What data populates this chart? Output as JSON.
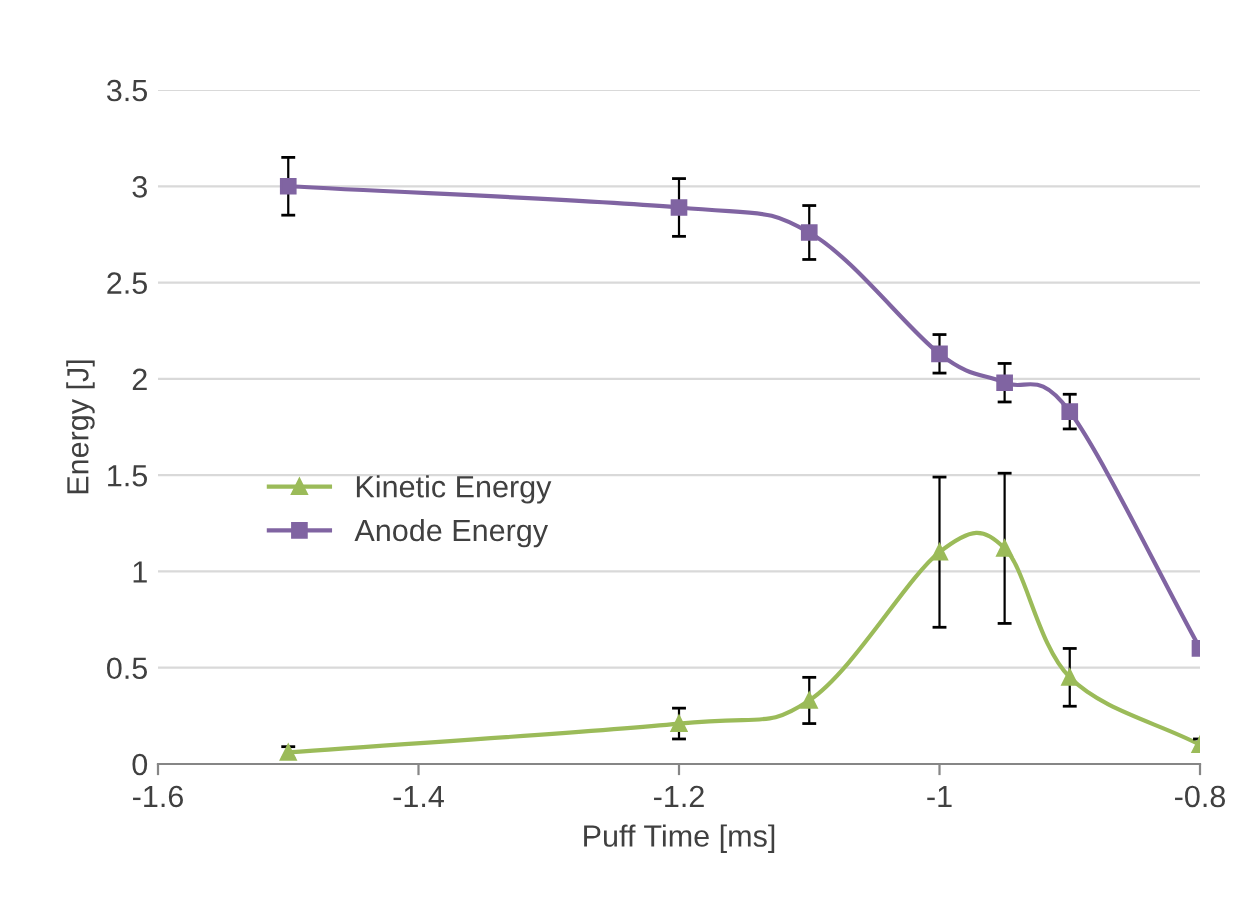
{
  "chart_data": {
    "type": "line",
    "xlabel": "Puff Time [ms]",
    "ylabel": "Energy [J]",
    "x": [
      -1.5,
      -1.2,
      -1.1,
      -1.0,
      -0.95,
      -0.9,
      -0.8
    ],
    "series": [
      {
        "name": "Kinetic Energy",
        "color": "#9bbb59",
        "marker": "triangle",
        "values": [
          0.06,
          0.21,
          0.33,
          1.1,
          1.12,
          0.45,
          0.1
        ],
        "errors": [
          0.03,
          0.08,
          0.12,
          0.39,
          0.39,
          0.15,
          0.03
        ]
      },
      {
        "name": "Anode Energy",
        "color": "#8064a2",
        "marker": "square",
        "values": [
          3.0,
          2.89,
          2.76,
          2.13,
          1.98,
          1.83,
          0.6
        ],
        "errors": [
          0.15,
          0.15,
          0.14,
          0.1,
          0.1,
          0.09,
          null
        ]
      }
    ],
    "xlim": [
      -1.6,
      -0.8
    ],
    "xticks": [
      -1.6,
      -1.4,
      -1.2,
      -1,
      -0.8
    ],
    "ylim": [
      0,
      3.5
    ],
    "yticks": [
      0,
      0.5,
      1,
      1.5,
      2,
      2.5,
      3,
      3.5
    ],
    "grid": "y",
    "legend": "left"
  }
}
